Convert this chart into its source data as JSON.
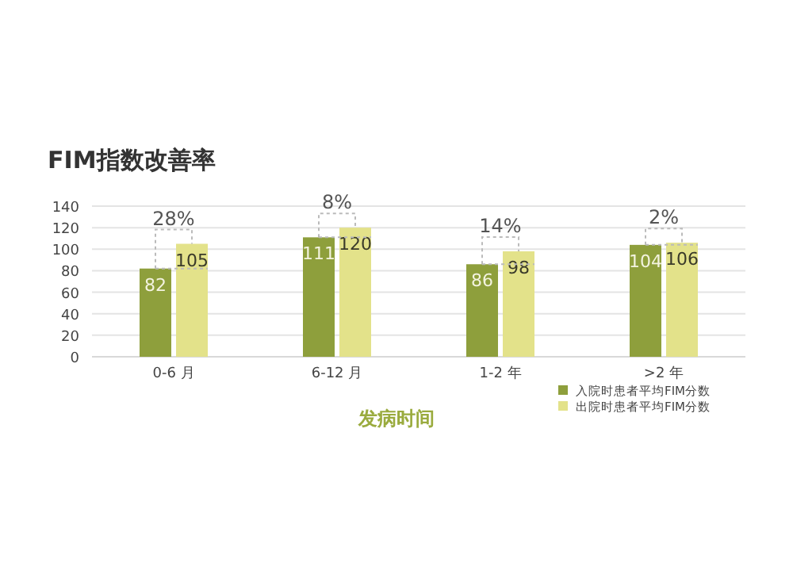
{
  "chart_data": {
    "type": "bar",
    "title": "FIM指数改善率",
    "xlabel": "发病时间",
    "categories": [
      "0-6 月",
      "6-12 月",
      "1-2 年",
      ">2 年"
    ],
    "series": [
      {
        "name": "入院时患者平均FIM分数",
        "color": "#8e9f3c",
        "values": [
          82,
          111,
          86,
          104
        ]
      },
      {
        "name": "出院时患者平均FIM分数",
        "color": "#e3e28a",
        "values": [
          105,
          120,
          98,
          106
        ]
      }
    ],
    "ylim": [
      0,
      140
    ],
    "yticks": [
      0,
      20,
      40,
      60,
      80,
      100,
      120,
      140
    ],
    "grid": "y",
    "legend": "bottom right",
    "data_labels": true,
    "annotations": [
      {
        "text": "28%",
        "x": "0-6 月",
        "y": 82
      },
      "8%",
      "14%",
      "2%"
    ]
  }
}
